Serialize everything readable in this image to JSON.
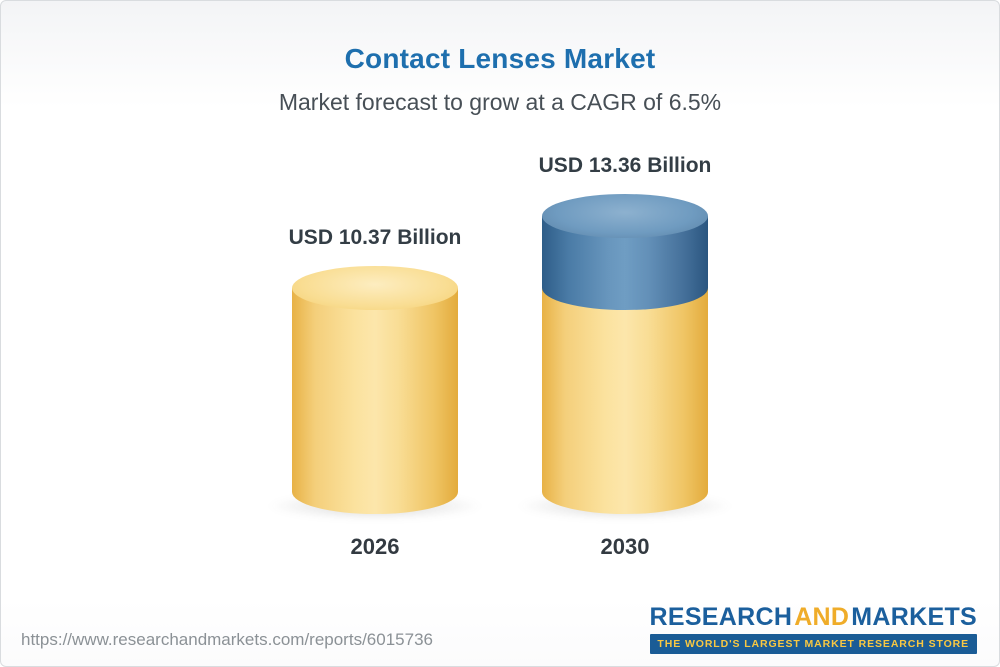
{
  "header": {
    "title": "Contact Lenses Market",
    "subtitle": "Market forecast to grow at a CAGR of 6.5%"
  },
  "chart_data": {
    "type": "bar",
    "title": "Contact Lenses Market",
    "subtitle": "Market forecast to grow at a CAGR of 6.5%",
    "unit": "USD Billion",
    "cagr_percent": 6.5,
    "categories": [
      "2026",
      "2030"
    ],
    "values": [
      10.37,
      13.36
    ],
    "value_labels": [
      "USD 10.37 Billion",
      "USD 13.36 Billion"
    ],
    "ylim": [
      0,
      13.36
    ],
    "grid": false,
    "legend": false,
    "colors": {
      "bar_body": "#f6d17c",
      "growth_segment": "#4d7ca6",
      "title": "#1e6fae"
    }
  },
  "footer": {
    "url": "https://www.researchandmarkets.com/reports/6015736",
    "logo": {
      "part1": "RESEARCH",
      "part2": "AND",
      "part3": "MARKETS",
      "tagline": "THE WORLD'S LARGEST MARKET RESEARCH STORE"
    }
  }
}
